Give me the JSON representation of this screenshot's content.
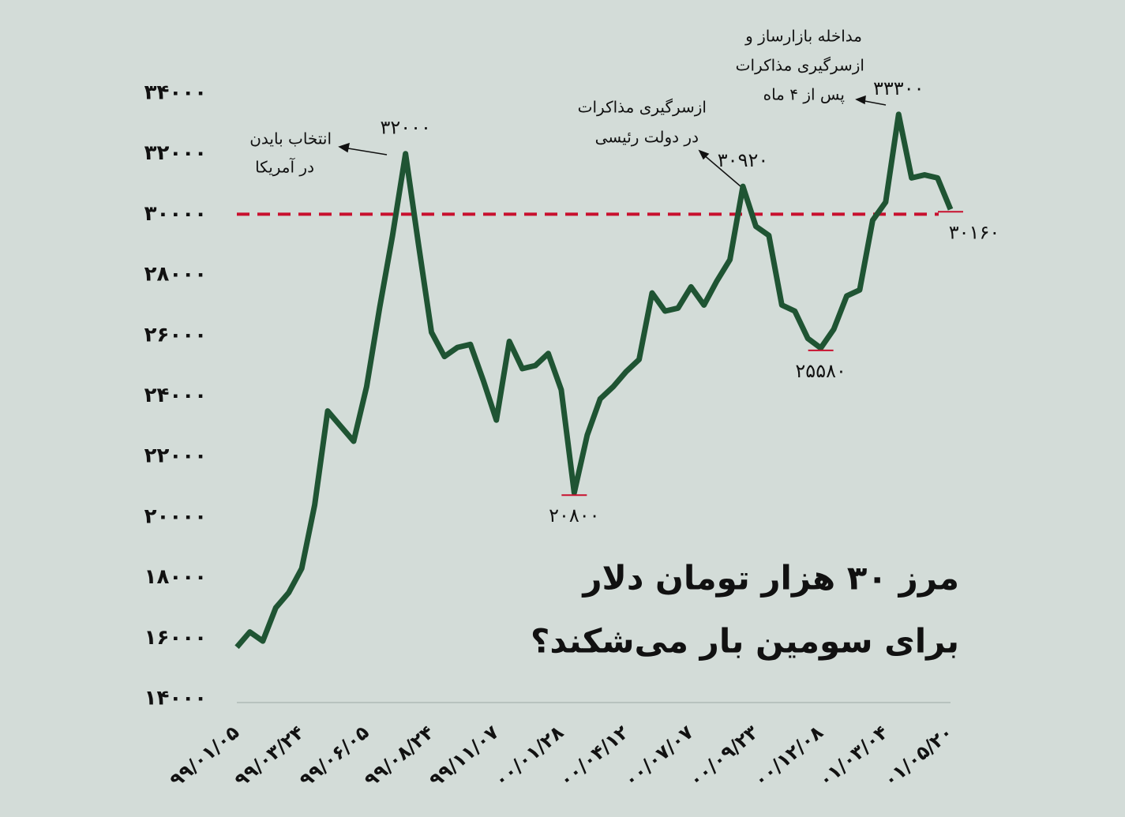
{
  "chart_data": {
    "type": "line",
    "title": [
      "مرز ۳۰ هزار تومان دلار",
      "برای سومین بار می‌شکند؟"
    ],
    "categories": [
      "۹۹/۰۱/۰۵",
      null,
      null,
      null,
      null,
      "۹۹/۰۳/۲۴",
      null,
      null,
      null,
      null,
      "۹۹/۰۶/۰۵",
      null,
      null,
      null,
      null,
      "۹۹/۰۸/۲۴",
      null,
      null,
      null,
      null,
      "۹۹/۱۱/۰۷",
      null,
      null,
      null,
      null,
      "۰۰/۰۱/۲۸",
      null,
      null,
      null,
      null,
      "۰۰/۰۴/۱۲",
      null,
      null,
      null,
      null,
      "۰۰/۰۷/۰۷",
      null,
      null,
      null,
      null,
      "۰۰/۰۹/۲۳",
      null,
      null,
      null,
      null,
      "۰۰/۱۲/۰۸",
      null,
      null,
      null,
      null,
      "۰۱/۰۳/۰۴",
      null,
      null,
      null,
      null,
      "۰۱/۰۵/۲۰"
    ],
    "series": [
      {
        "color": "#1f5433",
        "values": [
          15700,
          16200,
          15900,
          17000,
          17500,
          18300,
          20400,
          23500,
          23000,
          22500,
          24300,
          26900,
          29300,
          32000,
          29000,
          26100,
          25300,
          25600,
          25700,
          24500,
          23200,
          25800,
          24900,
          25000,
          25400,
          24200,
          20800,
          22700,
          23900,
          24300,
          24800,
          25200,
          27400,
          26800,
          26900,
          27600,
          27000,
          27800,
          28500,
          30920,
          29600,
          29300,
          27000,
          26800,
          25900,
          25580,
          26200,
          27300,
          27500,
          29800,
          30400,
          33300,
          31200,
          31300,
          31200,
          30160
        ],
        "value_labels": [
          null,
          null,
          null,
          null,
          null,
          null,
          null,
          null,
          null,
          null,
          null,
          null,
          null,
          "۳۲۰۰۰",
          null,
          null,
          null,
          null,
          null,
          null,
          null,
          null,
          null,
          null,
          null,
          null,
          "۲۰۸۰۰",
          null,
          null,
          null,
          null,
          null,
          null,
          null,
          null,
          null,
          null,
          null,
          null,
          "۳۰۹۲۰",
          null,
          null,
          null,
          null,
          null,
          "۲۵۵۸۰",
          null,
          null,
          null,
          null,
          null,
          "۳۳۳۰۰",
          null,
          null,
          null,
          "۳۰۱۶۰"
        ]
      }
    ],
    "ylim": [
      14000,
      34000
    ],
    "yticks": [
      {
        "value": 14000,
        "label": "۱۴۰۰۰"
      },
      {
        "value": 16000,
        "label": "۱۶۰۰۰"
      },
      {
        "value": 18000,
        "label": "۱۸۰۰۰"
      },
      {
        "value": 20000,
        "label": "۲۰۰۰۰"
      },
      {
        "value": 22000,
        "label": "۲۲۰۰۰"
      },
      {
        "value": 24000,
        "label": "۲۴۰۰۰"
      },
      {
        "value": 26000,
        "label": "۲۶۰۰۰"
      },
      {
        "value": 28000,
        "label": "۲۸۰۰۰"
      },
      {
        "value": 30000,
        "label": "۳۰۰۰۰"
      },
      {
        "value": 32000,
        "label": "۳۲۰۰۰"
      },
      {
        "value": 34000,
        "label": "۳۴۰۰۰"
      }
    ],
    "reference_line": {
      "value": 30000,
      "color": "#c8102e"
    },
    "annotations": [
      {
        "lines": [
          "انتخاب بایدن",
          "در آمریکا"
        ]
      },
      {
        "lines": [
          "ازسرگیری مذاکرات",
          "در دولت رئیسی"
        ]
      },
      {
        "lines": [
          "مداخله بازارساز و",
          "ازسرگیری مذاکرات",
          "پس از ۴ ماه"
        ]
      }
    ]
  }
}
